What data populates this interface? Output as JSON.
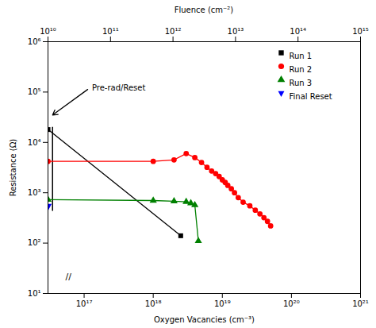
{
  "chart_data": {
    "type": "line",
    "xlabel": "Oxygen Vacancies (cm⁻³)",
    "x2label": "Fluence (cm⁻²)",
    "ylabel": "Resistance (Ω)",
    "log": true,
    "grid": false,
    "legend": "upper right",
    "xlim": [
      3e+16,
      1e+21
    ],
    "xticks": [
      {
        "value": 1e+17,
        "label": "10¹⁷"
      },
      {
        "value": 1e+18,
        "label": "10¹⁸"
      },
      {
        "value": 1e+19,
        "label": "10¹⁹"
      },
      {
        "value": 1e+20,
        "label": "10²⁰"
      },
      {
        "value": 1e+21,
        "label": "10²¹"
      }
    ],
    "x2lim": [
      10000000000.0,
      1000000000000000.0
    ],
    "x2ticks": [
      {
        "value": 10000000000.0,
        "label": "10¹⁰"
      },
      {
        "value": 100000000000.0,
        "label": "10¹¹"
      },
      {
        "value": 1000000000000.0,
        "label": "10¹²"
      },
      {
        "value": 10000000000000.0,
        "label": "10¹³"
      },
      {
        "value": 100000000000000.0,
        "label": "10¹⁴"
      },
      {
        "value": 1000000000000000.0,
        "label": "10¹⁵"
      }
    ],
    "ylim": [
      10,
      1000000.0
    ],
    "yticks": [
      {
        "value": 10,
        "label": "10¹"
      },
      {
        "value": 100,
        "label": "10²"
      },
      {
        "value": 1000,
        "label": "10³"
      },
      {
        "value": 10000,
        "label": "10⁴"
      },
      {
        "value": 100000,
        "label": "10⁵"
      },
      {
        "value": 1000000,
        "label": "10⁶"
      }
    ],
    "series": [
      {
        "name": "Run 1",
        "color": "black",
        "marker": "square",
        "x": [
          3e+16,
          2.5e+18
        ],
        "values": [
          18000,
          140
        ]
      },
      {
        "name": "Run 2",
        "color": "red",
        "marker": "circle",
        "x": [
          3e+16,
          1e+18,
          2e+18,
          3e+18,
          4e+18,
          5e+18,
          6e+18,
          7e+18,
          8e+18,
          9e+18,
          1e+19,
          1.1e+19,
          1.2e+19,
          1.35e+19,
          1.5e+19,
          1.7e+19,
          2e+19,
          2.5e+19,
          3e+19,
          3.5e+19,
          4e+19,
          4.5e+19,
          5e+19
        ],
        "values": [
          4200,
          4200,
          4500,
          6000,
          5000,
          4000,
          3200,
          2700,
          2400,
          2100,
          1800,
          1600,
          1400,
          1200,
          1000,
          800,
          650,
          550,
          450,
          380,
          320,
          270,
          220
        ]
      },
      {
        "name": "Run 3",
        "color": "green",
        "marker": "triangle",
        "x": [
          3e+16,
          1e+18,
          2e+18,
          3e+18,
          3.5e+18,
          4e+18,
          4.5e+18
        ],
        "values": [
          730,
          700,
          680,
          660,
          620,
          570,
          110
        ]
      },
      {
        "name": "Final Reset",
        "color": "blue",
        "marker": "triangle-down",
        "x": [
          3e+16
        ],
        "values": [
          530
        ]
      }
    ],
    "pre_rad_box": {
      "x": 3e+16,
      "y_low": 430,
      "y_high": 20000
    },
    "annotations": [
      {
        "text": "Pre-rad/Reset",
        "xy": [
          3.5e+16,
          35000
        ],
        "xytext": [
          1.2e+17,
          120000
        ]
      },
      {
        "text": "//"
      }
    ]
  }
}
